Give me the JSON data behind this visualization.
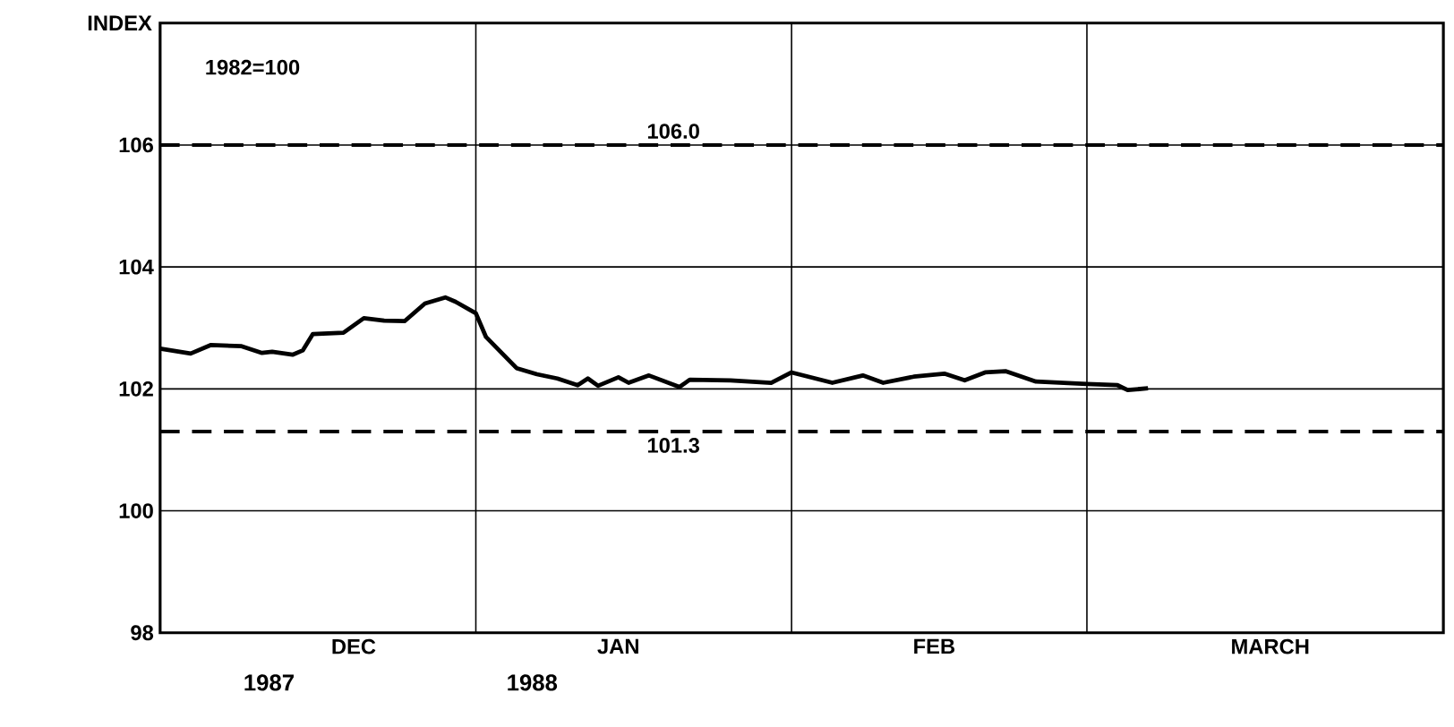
{
  "chart_data": {
    "type": "line",
    "ylabel": "INDEX",
    "annotations": [
      "1982=100",
      "1987",
      "1988"
    ],
    "x": [
      "1987-12-01",
      "1987-12-04",
      "1987-12-06",
      "1987-12-09",
      "1987-12-11",
      "1987-12-12",
      "1987-12-14",
      "1987-12-15",
      "1987-12-16",
      "1987-12-19",
      "1987-12-21",
      "1987-12-23",
      "1987-12-25",
      "1987-12-27",
      "1987-12-29",
      "1987-12-30",
      "1988-01-01",
      "1988-01-02",
      "1988-01-05",
      "1988-01-07",
      "1988-01-09",
      "1988-01-11",
      "1988-01-12",
      "1988-01-13",
      "1988-01-15",
      "1988-01-16",
      "1988-01-18",
      "1988-01-21",
      "1988-01-22",
      "1988-01-26",
      "1988-01-30",
      "1988-02-01",
      "1988-02-05",
      "1988-02-08",
      "1988-02-10",
      "1988-02-13",
      "1988-02-16",
      "1988-02-18",
      "1988-02-20",
      "1988-02-22",
      "1988-02-25",
      "1988-03-01",
      "1988-03-04",
      "1988-03-05",
      "1988-03-07"
    ],
    "series": [
      {
        "color": "#000000",
        "values": [
          102.66,
          102.58,
          102.72,
          102.7,
          102.59,
          102.61,
          102.56,
          102.63,
          102.9,
          102.92,
          103.16,
          103.12,
          103.11,
          103.4,
          103.5,
          103.43,
          103.24,
          102.85,
          102.34,
          102.24,
          102.17,
          102.06,
          102.17,
          102.05,
          102.19,
          102.1,
          102.22,
          102.03,
          102.15,
          102.14,
          102.1,
          102.27,
          102.1,
          102.22,
          102.1,
          102.2,
          102.25,
          102.14,
          102.27,
          102.29,
          102.12,
          102.08,
          102.06,
          101.98,
          102.01
        ]
      }
    ],
    "xlim": [
      "1987-12-01",
      "1988-04-05"
    ],
    "xticks": [
      {
        "value": "1988-01-01",
        "label": null
      },
      {
        "value": "1988-02-01",
        "label": null
      },
      {
        "value": "1988-03-01",
        "label": null
      },
      {
        "value": "1987-12-20",
        "label": "DEC"
      },
      {
        "value": "1988-01-15",
        "label": "JAN"
      },
      {
        "value": "1988-02-15",
        "label": "FEB"
      },
      {
        "value": "1988-03-19",
        "label": "MARCH"
      }
    ],
    "ylim": [
      98,
      108
    ],
    "yticks": [
      98,
      100,
      102,
      104,
      106
    ],
    "grid": true,
    "marker": "none",
    "line_style": "solid",
    "ref_lines": [
      {
        "axis": "y",
        "value": 106.0,
        "label": "106.0",
        "line_style": "dashed",
        "color": "#000000"
      },
      {
        "axis": "y",
        "value": 101.3,
        "label": "101.3",
        "line_style": "dashed",
        "color": "#000000"
      }
    ]
  }
}
